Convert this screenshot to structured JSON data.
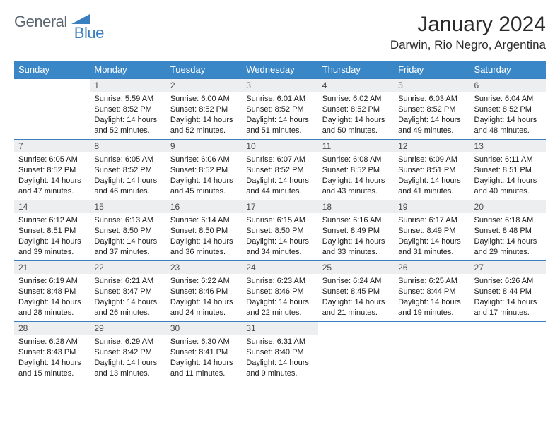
{
  "brand": {
    "part1": "General",
    "part2": "Blue"
  },
  "title": "January 2024",
  "location": "Darwin, Rio Negro, Argentina",
  "colors": {
    "header_bg": "#3a87c8",
    "border": "#3a7fbf",
    "daynum_bg": "#eceeef"
  },
  "fonts": {
    "title_size": 30,
    "location_size": 17,
    "header_size": 13,
    "cell_size": 11
  },
  "dayNames": [
    "Sunday",
    "Monday",
    "Tuesday",
    "Wednesday",
    "Thursday",
    "Friday",
    "Saturday"
  ],
  "weeks": [
    [
      null,
      {
        "n": "1",
        "sunrise": "5:59 AM",
        "sunset": "8:52 PM",
        "daylight": "14 hours and 52 minutes."
      },
      {
        "n": "2",
        "sunrise": "6:00 AM",
        "sunset": "8:52 PM",
        "daylight": "14 hours and 52 minutes."
      },
      {
        "n": "3",
        "sunrise": "6:01 AM",
        "sunset": "8:52 PM",
        "daylight": "14 hours and 51 minutes."
      },
      {
        "n": "4",
        "sunrise": "6:02 AM",
        "sunset": "8:52 PM",
        "daylight": "14 hours and 50 minutes."
      },
      {
        "n": "5",
        "sunrise": "6:03 AM",
        "sunset": "8:52 PM",
        "daylight": "14 hours and 49 minutes."
      },
      {
        "n": "6",
        "sunrise": "6:04 AM",
        "sunset": "8:52 PM",
        "daylight": "14 hours and 48 minutes."
      }
    ],
    [
      {
        "n": "7",
        "sunrise": "6:05 AM",
        "sunset": "8:52 PM",
        "daylight": "14 hours and 47 minutes."
      },
      {
        "n": "8",
        "sunrise": "6:05 AM",
        "sunset": "8:52 PM",
        "daylight": "14 hours and 46 minutes."
      },
      {
        "n": "9",
        "sunrise": "6:06 AM",
        "sunset": "8:52 PM",
        "daylight": "14 hours and 45 minutes."
      },
      {
        "n": "10",
        "sunrise": "6:07 AM",
        "sunset": "8:52 PM",
        "daylight": "14 hours and 44 minutes."
      },
      {
        "n": "11",
        "sunrise": "6:08 AM",
        "sunset": "8:52 PM",
        "daylight": "14 hours and 43 minutes."
      },
      {
        "n": "12",
        "sunrise": "6:09 AM",
        "sunset": "8:51 PM",
        "daylight": "14 hours and 41 minutes."
      },
      {
        "n": "13",
        "sunrise": "6:11 AM",
        "sunset": "8:51 PM",
        "daylight": "14 hours and 40 minutes."
      }
    ],
    [
      {
        "n": "14",
        "sunrise": "6:12 AM",
        "sunset": "8:51 PM",
        "daylight": "14 hours and 39 minutes."
      },
      {
        "n": "15",
        "sunrise": "6:13 AM",
        "sunset": "8:50 PM",
        "daylight": "14 hours and 37 minutes."
      },
      {
        "n": "16",
        "sunrise": "6:14 AM",
        "sunset": "8:50 PM",
        "daylight": "14 hours and 36 minutes."
      },
      {
        "n": "17",
        "sunrise": "6:15 AM",
        "sunset": "8:50 PM",
        "daylight": "14 hours and 34 minutes."
      },
      {
        "n": "18",
        "sunrise": "6:16 AM",
        "sunset": "8:49 PM",
        "daylight": "14 hours and 33 minutes."
      },
      {
        "n": "19",
        "sunrise": "6:17 AM",
        "sunset": "8:49 PM",
        "daylight": "14 hours and 31 minutes."
      },
      {
        "n": "20",
        "sunrise": "6:18 AM",
        "sunset": "8:48 PM",
        "daylight": "14 hours and 29 minutes."
      }
    ],
    [
      {
        "n": "21",
        "sunrise": "6:19 AM",
        "sunset": "8:48 PM",
        "daylight": "14 hours and 28 minutes."
      },
      {
        "n": "22",
        "sunrise": "6:21 AM",
        "sunset": "8:47 PM",
        "daylight": "14 hours and 26 minutes."
      },
      {
        "n": "23",
        "sunrise": "6:22 AM",
        "sunset": "8:46 PM",
        "daylight": "14 hours and 24 minutes."
      },
      {
        "n": "24",
        "sunrise": "6:23 AM",
        "sunset": "8:46 PM",
        "daylight": "14 hours and 22 minutes."
      },
      {
        "n": "25",
        "sunrise": "6:24 AM",
        "sunset": "8:45 PM",
        "daylight": "14 hours and 21 minutes."
      },
      {
        "n": "26",
        "sunrise": "6:25 AM",
        "sunset": "8:44 PM",
        "daylight": "14 hours and 19 minutes."
      },
      {
        "n": "27",
        "sunrise": "6:26 AM",
        "sunset": "8:44 PM",
        "daylight": "14 hours and 17 minutes."
      }
    ],
    [
      {
        "n": "28",
        "sunrise": "6:28 AM",
        "sunset": "8:43 PM",
        "daylight": "14 hours and 15 minutes."
      },
      {
        "n": "29",
        "sunrise": "6:29 AM",
        "sunset": "8:42 PM",
        "daylight": "14 hours and 13 minutes."
      },
      {
        "n": "30",
        "sunrise": "6:30 AM",
        "sunset": "8:41 PM",
        "daylight": "14 hours and 11 minutes."
      },
      {
        "n": "31",
        "sunrise": "6:31 AM",
        "sunset": "8:40 PM",
        "daylight": "14 hours and 9 minutes."
      },
      null,
      null,
      null
    ]
  ],
  "labels": {
    "sunrise": "Sunrise:",
    "sunset": "Sunset:",
    "daylight": "Daylight:"
  }
}
